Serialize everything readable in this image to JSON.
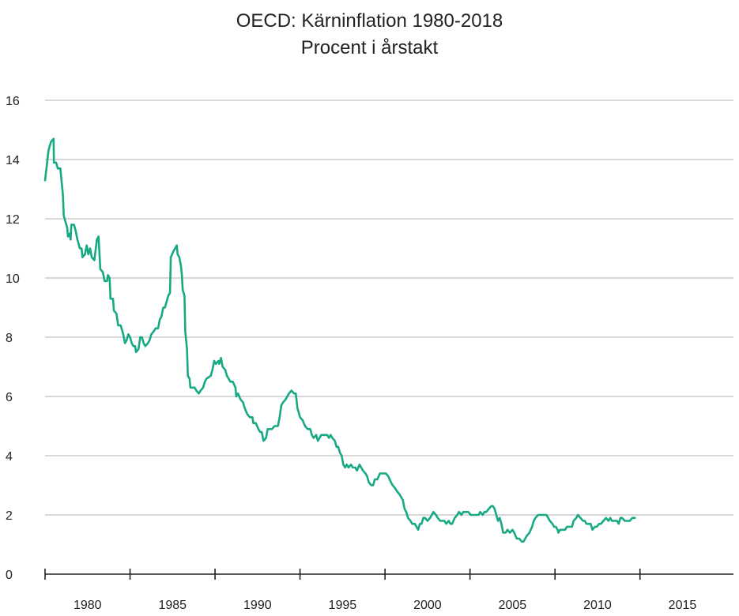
{
  "chart_data": {
    "type": "line",
    "title": "OECD: Kärninflation 1980-2018",
    "subtitle": "Procent i årstakt",
    "xlabel": "",
    "ylabel": "",
    "ylim": [
      0,
      16
    ],
    "yticks": [
      0,
      2,
      4,
      6,
      8,
      10,
      12,
      14,
      16
    ],
    "xlim": [
      1977.7,
      2018.2
    ],
    "xtick_labels": [
      {
        "label": "1980",
        "year": 1980.2
      },
      {
        "label": "1985",
        "year": 1985.2
      },
      {
        "label": "1990",
        "year": 1990.2
      },
      {
        "label": "1995",
        "year": 1995.2
      },
      {
        "label": "2000",
        "year": 2000.2
      },
      {
        "label": "2005",
        "year": 2005.2
      },
      {
        "label": "2010",
        "year": 2010.2
      },
      {
        "label": "2015",
        "year": 2015.2
      }
    ],
    "xaxis_markers": [
      1977.7,
      1982.7,
      1987.7,
      1992.7,
      1997.7,
      2002.7,
      2007.7,
      2012.7
    ],
    "grid": true,
    "line_color": "#17a984",
    "grid_color": "#cccccc",
    "series": [
      {
        "values": [
          [
            1977.7,
            13.3
          ],
          [
            1977.8,
            13.8
          ],
          [
            1977.9,
            14.3
          ],
          [
            1978.05,
            14.6
          ],
          [
            1978.2,
            14.7
          ],
          [
            1978.22,
            13.9
          ],
          [
            1978.35,
            13.9
          ],
          [
            1978.45,
            13.7
          ],
          [
            1978.6,
            13.7
          ],
          [
            1978.75,
            12.8
          ],
          [
            1978.8,
            12.1
          ],
          [
            1979.0,
            11.7
          ],
          [
            1979.05,
            11.4
          ],
          [
            1979.15,
            11.5
          ],
          [
            1979.2,
            11.3
          ],
          [
            1979.25,
            11.8
          ],
          [
            1979.4,
            11.8
          ],
          [
            1979.5,
            11.6
          ],
          [
            1979.6,
            11.3
          ],
          [
            1979.75,
            11.0
          ],
          [
            1979.85,
            11.0
          ],
          [
            1979.9,
            10.7
          ],
          [
            1980.05,
            10.8
          ],
          [
            1980.15,
            11.1
          ],
          [
            1980.25,
            10.8
          ],
          [
            1980.35,
            11.0
          ],
          [
            1980.45,
            10.7
          ],
          [
            1980.6,
            10.6
          ],
          [
            1980.75,
            11.3
          ],
          [
            1980.85,
            11.4
          ],
          [
            1980.95,
            10.3
          ],
          [
            1981.1,
            10.2
          ],
          [
            1981.2,
            9.9
          ],
          [
            1981.35,
            9.9
          ],
          [
            1981.4,
            10.1
          ],
          [
            1981.5,
            10.0
          ],
          [
            1981.55,
            9.3
          ],
          [
            1981.7,
            9.3
          ],
          [
            1981.75,
            8.9
          ],
          [
            1981.9,
            8.8
          ],
          [
            1982.0,
            8.4
          ],
          [
            1982.15,
            8.4
          ],
          [
            1982.3,
            8.1
          ],
          [
            1982.4,
            7.8
          ],
          [
            1982.5,
            7.9
          ],
          [
            1982.6,
            8.1
          ],
          [
            1982.7,
            8.0
          ],
          [
            1982.8,
            7.8
          ],
          [
            1982.9,
            7.7
          ],
          [
            1983.0,
            7.7
          ],
          [
            1983.05,
            7.5
          ],
          [
            1983.2,
            7.6
          ],
          [
            1983.3,
            8.0
          ],
          [
            1983.4,
            8.0
          ],
          [
            1983.5,
            7.8
          ],
          [
            1983.6,
            7.7
          ],
          [
            1983.75,
            7.8
          ],
          [
            1983.85,
            7.9
          ],
          [
            1983.95,
            8.1
          ],
          [
            1984.1,
            8.2
          ],
          [
            1984.2,
            8.3
          ],
          [
            1984.35,
            8.3
          ],
          [
            1984.45,
            8.6
          ],
          [
            1984.55,
            8.7
          ],
          [
            1984.65,
            9.0
          ],
          [
            1984.75,
            9.0
          ],
          [
            1984.85,
            9.2
          ],
          [
            1984.95,
            9.4
          ],
          [
            1985.05,
            9.5
          ],
          [
            1985.1,
            10.7
          ],
          [
            1985.25,
            10.9
          ],
          [
            1985.35,
            11.0
          ],
          [
            1985.45,
            11.1
          ],
          [
            1985.5,
            10.8
          ],
          [
            1985.6,
            10.7
          ],
          [
            1985.7,
            10.4
          ],
          [
            1985.75,
            10.1
          ],
          [
            1985.8,
            9.6
          ],
          [
            1985.9,
            9.4
          ],
          [
            1985.95,
            8.2
          ],
          [
            1986.05,
            7.6
          ],
          [
            1986.1,
            6.7
          ],
          [
            1986.2,
            6.6
          ],
          [
            1986.25,
            6.3
          ],
          [
            1986.5,
            6.3
          ],
          [
            1986.6,
            6.2
          ],
          [
            1986.75,
            6.1
          ],
          [
            1986.85,
            6.2
          ],
          [
            1987.0,
            6.3
          ],
          [
            1987.1,
            6.5
          ],
          [
            1987.2,
            6.6
          ],
          [
            1987.45,
            6.7
          ],
          [
            1987.55,
            6.9
          ],
          [
            1987.65,
            7.2
          ],
          [
            1987.75,
            7.1
          ],
          [
            1987.9,
            7.2
          ],
          [
            1987.95,
            7.1
          ],
          [
            1988.05,
            7.3
          ],
          [
            1988.15,
            7.0
          ],
          [
            1988.3,
            6.9
          ],
          [
            1988.4,
            6.7
          ],
          [
            1988.5,
            6.6
          ],
          [
            1988.6,
            6.5
          ],
          [
            1988.75,
            6.5
          ],
          [
            1988.9,
            6.3
          ],
          [
            1988.95,
            6.0
          ],
          [
            1989.05,
            6.1
          ],
          [
            1989.2,
            5.9
          ],
          [
            1989.35,
            5.8
          ],
          [
            1989.45,
            5.6
          ],
          [
            1989.6,
            5.4
          ],
          [
            1989.75,
            5.3
          ],
          [
            1989.9,
            5.3
          ],
          [
            1989.95,
            5.1
          ],
          [
            1990.1,
            5.1
          ],
          [
            1990.25,
            4.9
          ],
          [
            1990.35,
            4.8
          ],
          [
            1990.45,
            4.8
          ],
          [
            1990.55,
            4.5
          ],
          [
            1990.7,
            4.6
          ],
          [
            1990.8,
            4.9
          ],
          [
            1990.95,
            4.9
          ],
          [
            1991.05,
            4.9
          ],
          [
            1991.2,
            5.0
          ],
          [
            1991.4,
            5.0
          ],
          [
            1991.5,
            5.3
          ],
          [
            1991.6,
            5.7
          ],
          [
            1991.7,
            5.8
          ],
          [
            1991.85,
            5.9
          ],
          [
            1991.95,
            6.0
          ],
          [
            1992.05,
            6.1
          ],
          [
            1992.2,
            6.2
          ],
          [
            1992.35,
            6.1
          ],
          [
            1992.45,
            6.1
          ],
          [
            1992.55,
            5.6
          ],
          [
            1992.7,
            5.3
          ],
          [
            1992.85,
            5.2
          ],
          [
            1993.0,
            5.0
          ],
          [
            1993.15,
            4.9
          ],
          [
            1993.3,
            4.9
          ],
          [
            1993.4,
            4.7
          ],
          [
            1993.5,
            4.6
          ],
          [
            1993.65,
            4.7
          ],
          [
            1993.75,
            4.5
          ],
          [
            1993.85,
            4.6
          ],
          [
            1993.95,
            4.7
          ],
          [
            1994.1,
            4.7
          ],
          [
            1994.3,
            4.7
          ],
          [
            1994.4,
            4.6
          ],
          [
            1994.5,
            4.7
          ],
          [
            1994.6,
            4.6
          ],
          [
            1994.75,
            4.5
          ],
          [
            1994.85,
            4.3
          ],
          [
            1994.95,
            4.3
          ],
          [
            1995.05,
            4.1
          ],
          [
            1995.15,
            4.0
          ],
          [
            1995.25,
            3.7
          ],
          [
            1995.35,
            3.6
          ],
          [
            1995.45,
            3.7
          ],
          [
            1995.55,
            3.6
          ],
          [
            1995.7,
            3.7
          ],
          [
            1995.8,
            3.6
          ],
          [
            1995.95,
            3.6
          ],
          [
            1996.05,
            3.5
          ],
          [
            1996.2,
            3.7
          ],
          [
            1996.3,
            3.6
          ],
          [
            1996.4,
            3.5
          ],
          [
            1996.55,
            3.4
          ],
          [
            1996.65,
            3.3
          ],
          [
            1996.75,
            3.1
          ],
          [
            1996.9,
            3.0
          ],
          [
            1997.0,
            3.0
          ],
          [
            1997.1,
            3.2
          ],
          [
            1997.25,
            3.2
          ],
          [
            1997.4,
            3.4
          ],
          [
            1997.55,
            3.4
          ],
          [
            1997.75,
            3.4
          ],
          [
            1997.9,
            3.3
          ],
          [
            1998.05,
            3.1
          ],
          [
            1998.15,
            3.0
          ],
          [
            1998.3,
            2.9
          ],
          [
            1998.4,
            2.8
          ],
          [
            1998.55,
            2.7
          ],
          [
            1998.65,
            2.6
          ],
          [
            1998.75,
            2.5
          ],
          [
            1998.85,
            2.2
          ],
          [
            1998.95,
            2.1
          ],
          [
            1999.05,
            1.9
          ],
          [
            1999.2,
            1.8
          ],
          [
            1999.3,
            1.7
          ],
          [
            1999.45,
            1.7
          ],
          [
            1999.55,
            1.6
          ],
          [
            1999.65,
            1.5
          ],
          [
            1999.75,
            1.7
          ],
          [
            1999.85,
            1.7
          ],
          [
            1999.95,
            1.9
          ],
          [
            2000.05,
            1.9
          ],
          [
            2000.2,
            1.8
          ],
          [
            2000.35,
            1.9
          ],
          [
            2000.45,
            2.0
          ],
          [
            2000.55,
            2.1
          ],
          [
            2000.7,
            2.0
          ],
          [
            2000.8,
            1.9
          ],
          [
            2000.95,
            1.8
          ],
          [
            2001.2,
            1.8
          ],
          [
            2001.3,
            1.7
          ],
          [
            2001.45,
            1.8
          ],
          [
            2001.55,
            1.7
          ],
          [
            2001.65,
            1.7
          ],
          [
            2001.8,
            1.9
          ],
          [
            2001.95,
            2.0
          ],
          [
            2002.05,
            2.1
          ],
          [
            2002.2,
            2.0
          ],
          [
            2002.3,
            2.1
          ],
          [
            2002.5,
            2.1
          ],
          [
            2002.6,
            2.1
          ],
          [
            2002.75,
            2.0
          ],
          [
            2002.9,
            2.0
          ],
          [
            2003.05,
            2.0
          ],
          [
            2003.2,
            2.0
          ],
          [
            2003.3,
            2.1
          ],
          [
            2003.45,
            2.0
          ],
          [
            2003.55,
            2.1
          ],
          [
            2003.65,
            2.1
          ],
          [
            2003.8,
            2.2
          ],
          [
            2003.95,
            2.3
          ],
          [
            2004.05,
            2.3
          ],
          [
            2004.15,
            2.2
          ],
          [
            2004.25,
            2.0
          ],
          [
            2004.35,
            1.8
          ],
          [
            2004.45,
            1.9
          ],
          [
            2004.55,
            1.7
          ],
          [
            2004.65,
            1.4
          ],
          [
            2004.8,
            1.4
          ],
          [
            2004.9,
            1.5
          ],
          [
            2005.05,
            1.4
          ],
          [
            2005.2,
            1.5
          ],
          [
            2005.3,
            1.4
          ],
          [
            2005.45,
            1.2
          ],
          [
            2005.6,
            1.2
          ],
          [
            2005.75,
            1.1
          ],
          [
            2005.85,
            1.1
          ],
          [
            2005.95,
            1.2
          ],
          [
            2006.05,
            1.3
          ],
          [
            2006.2,
            1.4
          ],
          [
            2006.35,
            1.6
          ],
          [
            2006.45,
            1.8
          ],
          [
            2006.55,
            1.9
          ],
          [
            2006.7,
            2.0
          ],
          [
            2006.85,
            2.0
          ],
          [
            2007.05,
            2.0
          ],
          [
            2007.2,
            2.0
          ],
          [
            2007.3,
            1.9
          ],
          [
            2007.4,
            1.8
          ],
          [
            2007.55,
            1.7
          ],
          [
            2007.65,
            1.6
          ],
          [
            2007.75,
            1.6
          ],
          [
            2007.85,
            1.5
          ],
          [
            2007.9,
            1.4
          ],
          [
            2008.0,
            1.5
          ],
          [
            2008.15,
            1.5
          ],
          [
            2008.3,
            1.5
          ],
          [
            2008.4,
            1.6
          ],
          [
            2008.55,
            1.6
          ],
          [
            2008.7,
            1.6
          ],
          [
            2008.8,
            1.8
          ],
          [
            2008.95,
            1.9
          ],
          [
            2009.05,
            2.0
          ],
          [
            2009.2,
            1.9
          ],
          [
            2009.35,
            1.8
          ],
          [
            2009.45,
            1.8
          ],
          [
            2009.55,
            1.7
          ],
          [
            2009.65,
            1.7
          ],
          [
            2009.8,
            1.7
          ],
          [
            2009.9,
            1.5
          ],
          [
            2010.05,
            1.6
          ],
          [
            2010.15,
            1.6
          ],
          [
            2010.3,
            1.7
          ],
          [
            2010.4,
            1.7
          ],
          [
            2010.55,
            1.8
          ],
          [
            2010.7,
            1.9
          ],
          [
            2010.85,
            1.8
          ],
          [
            2010.95,
            1.9
          ],
          [
            2011.05,
            1.8
          ],
          [
            2011.2,
            1.8
          ],
          [
            2011.35,
            1.8
          ],
          [
            2011.45,
            1.7
          ],
          [
            2011.55,
            1.9
          ],
          [
            2011.65,
            1.9
          ],
          [
            2011.8,
            1.8
          ],
          [
            2011.95,
            1.8
          ],
          [
            2012.1,
            1.8
          ],
          [
            2012.25,
            1.9
          ],
          [
            2012.4,
            1.9
          ]
        ]
      }
    ]
  }
}
